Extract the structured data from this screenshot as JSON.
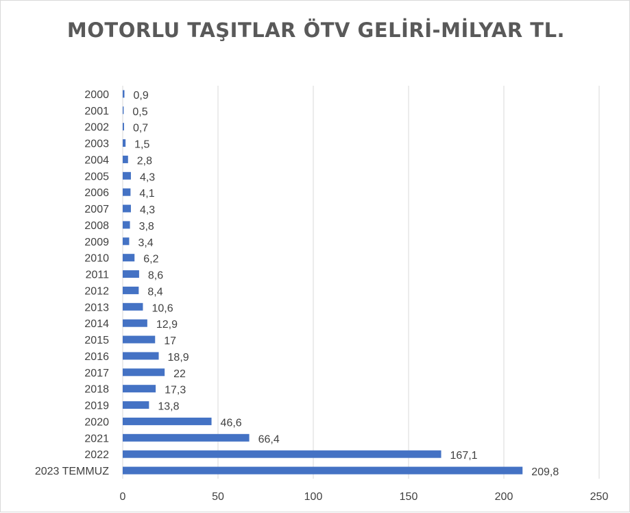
{
  "chart_data": {
    "type": "bar",
    "orientation": "horizontal",
    "title": "MOTORLU TAŞITLAR ÖTV GELİRİ-MİLYAR TL.",
    "categories": [
      "2000",
      "2001",
      "2002",
      "2003",
      "2004",
      "2005",
      "2006",
      "2007",
      "2008",
      "2009",
      "2010",
      "2011",
      "2012",
      "2013",
      "2014",
      "2015",
      "2016",
      "2017",
      "2018",
      "2019",
      "2020",
      "2021",
      "2022",
      "2023 TEMMUZ"
    ],
    "values": [
      0.9,
      0.5,
      0.7,
      1.5,
      2.8,
      4.3,
      4.1,
      4.3,
      3.8,
      3.4,
      6.2,
      8.6,
      8.4,
      10.6,
      12.9,
      17,
      18.9,
      22,
      17.3,
      13.8,
      46.6,
      66.4,
      167.1,
      209.8
    ],
    "value_labels": [
      "0,9",
      "0,5",
      "0,7",
      "1,5",
      "2,8",
      "4,3",
      "4,1",
      "4,3",
      "3,8",
      "3,4",
      "6,2",
      "8,6",
      "8,4",
      "10,6",
      "12,9",
      "17",
      "18,9",
      "22",
      "17,3",
      "13,8",
      "46,6",
      "66,4",
      "167,1",
      "209,8"
    ],
    "xlim": [
      0,
      250
    ],
    "x_ticks": [
      0,
      50,
      100,
      150,
      200,
      250
    ],
    "grid": true,
    "bar_color": "#4472c4",
    "legend": "none"
  }
}
